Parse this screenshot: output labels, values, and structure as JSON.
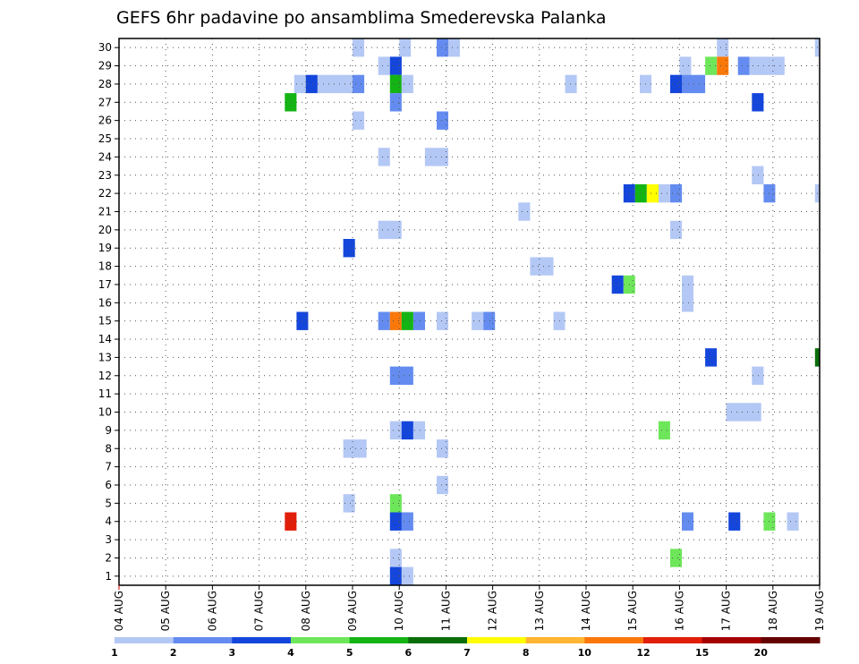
{
  "chart_data": {
    "type": "heatmap",
    "title": "GEFS 6hr padavine po ansamblima Smederevska Palanka",
    "x_tick_labels": [
      "04 AUG",
      "05 AUG",
      "06 AUG",
      "07 AUG",
      "08 AUG",
      "09 AUG",
      "10 AUG",
      "11 AUG",
      "12 AUG",
      "13 AUG",
      "14 AUG",
      "15 AUG",
      "16 AUG",
      "17 AUG",
      "18 AUG",
      "19 AUG"
    ],
    "y_tick_labels": [
      "1",
      "2",
      "3",
      "4",
      "5",
      "6",
      "7",
      "8",
      "9",
      "10",
      "11",
      "12",
      "13",
      "14",
      "15",
      "16",
      "17",
      "18",
      "19",
      "20",
      "21",
      "22",
      "23",
      "24",
      "25",
      "26",
      "27",
      "28",
      "29",
      "30"
    ],
    "xlim_days": [
      0,
      15
    ],
    "ylim_members": [
      0.5,
      30.5
    ],
    "grid": true,
    "colorbar": {
      "labels": [
        "1",
        "2",
        "3",
        "4",
        "5",
        "6",
        "7",
        "8",
        "10",
        "12",
        "15",
        "20"
      ],
      "colors": [
        "#b4c8f5",
        "#648cf0",
        "#1446dc",
        "#6ee65a",
        "#14b414",
        "#0a6e0a",
        "#ffff00",
        "#ffb432",
        "#fa780a",
        "#e11e0a",
        "#a50000",
        "#640000"
      ]
    },
    "cells_note": "each cell: [member, start_day_offset_from_04AUG, duration_days, color_class]",
    "cells": [
      [
        30,
        5.0,
        0.25,
        1
      ],
      [
        30,
        6.0,
        0.25,
        1
      ],
      [
        30,
        6.8,
        0.25,
        2
      ],
      [
        30,
        7.05,
        0.25,
        1
      ],
      [
        30,
        12.8,
        0.25,
        1
      ],
      [
        30,
        14.9,
        0.25,
        1
      ],
      [
        29,
        5.55,
        0.25,
        1
      ],
      [
        29,
        5.8,
        0.25,
        3
      ],
      [
        29,
        12.0,
        0.25,
        1
      ],
      [
        29,
        12.55,
        0.25,
        4
      ],
      [
        29,
        12.8,
        0.25,
        9
      ],
      [
        29,
        13.25,
        0.25,
        2
      ],
      [
        29,
        13.5,
        0.75,
        1
      ],
      [
        28,
        3.75,
        0.25,
        1
      ],
      [
        28,
        4.0,
        0.25,
        3
      ],
      [
        28,
        4.25,
        0.75,
        1
      ],
      [
        28,
        5.0,
        0.25,
        2
      ],
      [
        28,
        5.8,
        0.25,
        5
      ],
      [
        28,
        6.05,
        0.25,
        1
      ],
      [
        28,
        9.55,
        0.25,
        1
      ],
      [
        28,
        11.15,
        0.25,
        1
      ],
      [
        28,
        11.8,
        0.25,
        3
      ],
      [
        28,
        12.05,
        0.5,
        2
      ],
      [
        27,
        3.55,
        0.25,
        5
      ],
      [
        27,
        5.8,
        0.25,
        2
      ],
      [
        27,
        13.55,
        0.25,
        3
      ],
      [
        26,
        5.0,
        0.25,
        1
      ],
      [
        26,
        6.8,
        0.25,
        2
      ],
      [
        24,
        5.55,
        0.25,
        1
      ],
      [
        24,
        6.55,
        0.5,
        1
      ],
      [
        23,
        13.55,
        0.25,
        1
      ],
      [
        22,
        10.8,
        0.25,
        3
      ],
      [
        22,
        11.05,
        0.25,
        5
      ],
      [
        22,
        11.3,
        0.25,
        7
      ],
      [
        22,
        11.55,
        0.25,
        1
      ],
      [
        22,
        11.8,
        0.25,
        2
      ],
      [
        22,
        13.8,
        0.25,
        2
      ],
      [
        22,
        14.9,
        0.25,
        1
      ],
      [
        21,
        8.55,
        0.25,
        1
      ],
      [
        20,
        5.55,
        0.5,
        1
      ],
      [
        20,
        11.8,
        0.25,
        1
      ],
      [
        19,
        4.8,
        0.25,
        3
      ],
      [
        18,
        8.8,
        0.5,
        1
      ],
      [
        17,
        10.55,
        0.25,
        3
      ],
      [
        17,
        10.8,
        0.25,
        4
      ],
      [
        17,
        12.05,
        0.25,
        1
      ],
      [
        16,
        12.05,
        0.25,
        1
      ],
      [
        15,
        3.8,
        0.25,
        3
      ],
      [
        15,
        5.55,
        0.25,
        2
      ],
      [
        15,
        5.8,
        0.25,
        9
      ],
      [
        15,
        6.05,
        0.25,
        5
      ],
      [
        15,
        6.3,
        0.25,
        2
      ],
      [
        15,
        6.8,
        0.25,
        1
      ],
      [
        15,
        7.55,
        0.25,
        1
      ],
      [
        15,
        7.8,
        0.25,
        2
      ],
      [
        15,
        9.3,
        0.25,
        1
      ],
      [
        13,
        12.55,
        0.25,
        3
      ],
      [
        13,
        14.9,
        0.25,
        6
      ],
      [
        12,
        5.8,
        0.5,
        2
      ],
      [
        12,
        13.55,
        0.25,
        1
      ],
      [
        10,
        13.0,
        0.75,
        1
      ],
      [
        9,
        5.8,
        0.25,
        1
      ],
      [
        9,
        6.05,
        0.25,
        3
      ],
      [
        9,
        6.3,
        0.25,
        1
      ],
      [
        9,
        11.55,
        0.25,
        4
      ],
      [
        8,
        4.8,
        0.5,
        1
      ],
      [
        8,
        6.8,
        0.25,
        1
      ],
      [
        6,
        6.8,
        0.25,
        1
      ],
      [
        5,
        4.8,
        0.25,
        1
      ],
      [
        5,
        5.8,
        0.25,
        4
      ],
      [
        4,
        3.55,
        0.25,
        10
      ],
      [
        4,
        5.8,
        0.25,
        3
      ],
      [
        4,
        6.05,
        0.25,
        2
      ],
      [
        4,
        12.05,
        0.25,
        2
      ],
      [
        4,
        13.05,
        0.25,
        3
      ],
      [
        4,
        13.8,
        0.25,
        4
      ],
      [
        4,
        14.3,
        0.25,
        1
      ],
      [
        2,
        5.8,
        0.25,
        1
      ],
      [
        2,
        11.8,
        0.25,
        4
      ],
      [
        1,
        5.8,
        0.25,
        3
      ],
      [
        1,
        6.05,
        0.25,
        1
      ]
    ]
  }
}
